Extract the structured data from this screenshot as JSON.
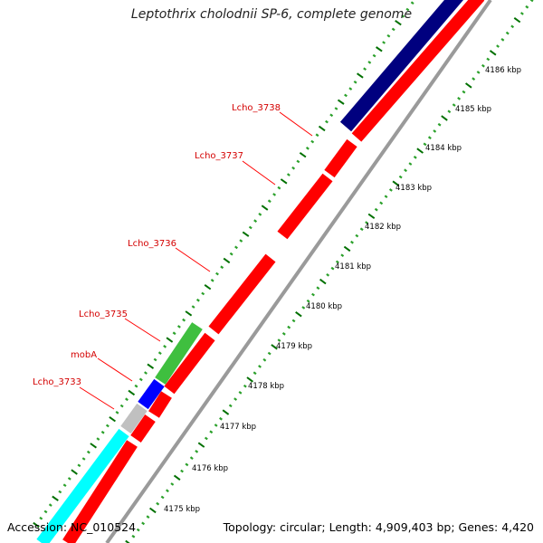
{
  "title": "Leptothrix cholodnii SP-6, complete genome",
  "footer": {
    "accession": "Accession: NC_010524",
    "summary": "Topology: circular; Length: 4,909,403 bp; Genes: 4,420"
  },
  "colors": {
    "cds_reverse": "#ff0000",
    "forward_blue": "#00007f",
    "forward_green": "#3fbf3f",
    "forward_blue_bright": "#0000ff",
    "forward_gray": "#c0c0c0",
    "forward_cyan": "#00ffff",
    "backbone": "#9a9a9a",
    "tick_dark": "#007000",
    "tick_light": "#2aa02a",
    "gene_label": "#d40000"
  },
  "ruler_labels": [
    "4175 kbp",
    "4176 kbp",
    "4177 kbp",
    "4178 kbp",
    "4179 kbp",
    "4180 kbp",
    "4181 kbp",
    "4182 kbp",
    "4183 kbp",
    "4184 kbp",
    "4185 kbp",
    "4186 kbp"
  ],
  "gene_labels": [
    "Lcho_3733",
    "mobA",
    "Lcho_3735",
    "Lcho_3736",
    "Lcho_3737",
    "Lcho_3738"
  ]
}
